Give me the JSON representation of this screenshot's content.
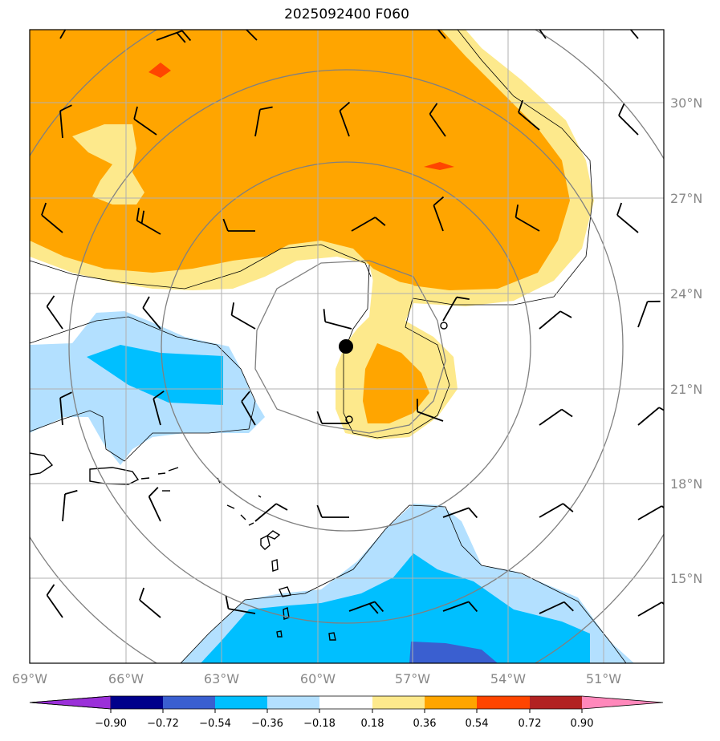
{
  "title": "2025092400 F060",
  "lon_ticks": [
    "69°W",
    "66°W",
    "63°W",
    "60°W",
    "57°W",
    "54°W",
    "51°W"
  ],
  "lat_ticks": [
    "30°N",
    "27°N",
    "24°N",
    "21°N",
    "18°N",
    "15°N"
  ],
  "colorbar": {
    "labels": [
      "−0.90",
      "−0.72",
      "−0.54",
      "−0.36",
      "−0.18",
      "0.18",
      "0.36",
      "0.54",
      "0.72",
      "0.90"
    ],
    "colors": [
      "#9b30d9",
      "#00008b",
      "#3a5fd0",
      "#00bfff",
      "#b3e0ff",
      "#ffffff",
      "#fde98c",
      "#ffa500",
      "#ff4500",
      "#b22222",
      "#ff88bb"
    ]
  },
  "storm_center": {
    "lon": -58.8,
    "lat": 22.3
  }
}
